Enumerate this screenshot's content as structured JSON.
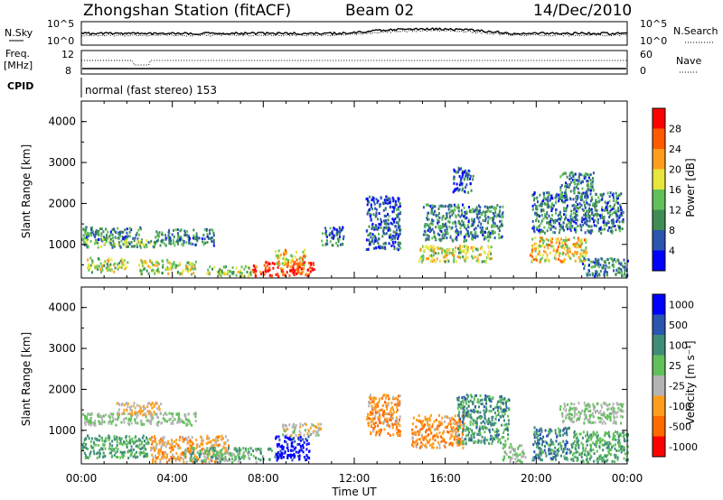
{
  "header": {
    "station": "Zhongshan Station (fitACF)",
    "beam": "Beam 02",
    "date": "14/Dec/2010",
    "mode_line": "normal (fast stereo) 153"
  },
  "strips": {
    "nsky_label": "N.Sky",
    "nsearch_label": "N.Search",
    "nsky_ticks": [
      "10^5",
      "10^0"
    ],
    "nsearch_ticks": [
      "10^5",
      "10^0"
    ],
    "freq_label_1": "Freq.",
    "freq_label_2": "[MHz]",
    "freq_ticks": [
      "12",
      "8"
    ],
    "nave_label": "Nave",
    "nave_ticks": [
      "60",
      "0"
    ],
    "cpid_label": "CPID"
  },
  "colors": {
    "power_scale": [
      "#0000ff",
      "#2a55b0",
      "#3f8c55",
      "#60c05a",
      "#e6e63c",
      "#ff9e1e",
      "#ff5a00",
      "#ff0000"
    ],
    "velocity_scale": [
      "#0000ff",
      "#2a55b0",
      "#3f8c78",
      "#60c05a",
      "#b4b4b4",
      "#ff9e1e",
      "#ff6a00",
      "#ff0000"
    ]
  },
  "chart_data": [
    {
      "type": "heatmap",
      "panel": "power",
      "ylabel": "Slant Range [km]",
      "yticks": [
        "4000",
        "3000",
        "2000",
        "1000"
      ],
      "ylim": [
        180,
        4500
      ],
      "xticks": [
        "00:00",
        "04:00",
        "08:00",
        "12:00",
        "16:00",
        "20:00",
        "00:00"
      ],
      "xlim_hours": [
        0,
        24
      ],
      "colorbar_label": "Power [dB]",
      "colorbar_ticks": [
        "28",
        "24",
        "20",
        "16",
        "12",
        "8",
        "4"
      ],
      "colorbar_range": [
        0,
        30
      ],
      "blobs": [
        {
          "h0": 0.0,
          "h1": 2.6,
          "r0": 1150,
          "r1": 1450,
          "v": 8
        },
        {
          "h0": 0.0,
          "h1": 3.2,
          "r0": 950,
          "r1": 1200,
          "v": 12
        },
        {
          "h0": 0.2,
          "h1": 2.0,
          "r0": 350,
          "r1": 700,
          "v": 14
        },
        {
          "h0": 2.5,
          "h1": 5.0,
          "r0": 300,
          "r1": 650,
          "v": 16
        },
        {
          "h0": 3.2,
          "h1": 5.8,
          "r0": 1000,
          "r1": 1400,
          "v": 9
        },
        {
          "h0": 5.5,
          "h1": 7.5,
          "r0": 250,
          "r1": 500,
          "v": 14
        },
        {
          "h0": 7.5,
          "h1": 10.2,
          "r0": 250,
          "r1": 600,
          "v": 26
        },
        {
          "h0": 8.5,
          "h1": 9.8,
          "r0": 500,
          "r1": 900,
          "v": 18
        },
        {
          "h0": 10.5,
          "h1": 11.5,
          "r0": 1000,
          "r1": 1450,
          "v": 7
        },
        {
          "h0": 12.5,
          "h1": 14.0,
          "r0": 900,
          "r1": 2200,
          "v": 6
        },
        {
          "h0": 14.8,
          "h1": 18.0,
          "r0": 600,
          "r1": 1000,
          "v": 16
        },
        {
          "h0": 15.0,
          "h1": 18.5,
          "r0": 1100,
          "r1": 2000,
          "v": 9
        },
        {
          "h0": 16.3,
          "h1": 17.2,
          "r0": 2300,
          "r1": 2900,
          "v": 6
        },
        {
          "h0": 19.7,
          "h1": 22.2,
          "r0": 600,
          "r1": 1200,
          "v": 18
        },
        {
          "h0": 19.8,
          "h1": 23.8,
          "r0": 1300,
          "r1": 2300,
          "v": 8
        },
        {
          "h0": 21.0,
          "h1": 22.5,
          "r0": 2100,
          "r1": 2800,
          "v": 9
        },
        {
          "h0": 22.0,
          "h1": 24.0,
          "r0": 250,
          "r1": 700,
          "v": 8
        }
      ]
    },
    {
      "type": "heatmap",
      "panel": "velocity",
      "ylabel": "Slant Range [km]",
      "yticks": [
        "4000",
        "3000",
        "2000",
        "1000"
      ],
      "ylim": [
        180,
        4500
      ],
      "xticks": [
        "00:00",
        "04:00",
        "08:00",
        "12:00",
        "16:00",
        "20:00",
        "00:00"
      ],
      "xlim_hours": [
        0,
        24
      ],
      "xlabel": "Time UT",
      "colorbar_label": "Velocity [m s⁻¹]",
      "colorbar_ticks": [
        "1000",
        "500",
        "100",
        "25",
        "-25",
        "-100",
        "-500",
        "-1000"
      ],
      "colorbar_range": [
        -1200,
        1200
      ],
      "blobs": [
        {
          "h0": 0.0,
          "h1": 5.0,
          "r0": 1150,
          "r1": 1450,
          "v": 0
        },
        {
          "h0": 0.0,
          "h1": 3.0,
          "r0": 350,
          "r1": 900,
          "v": 300
        },
        {
          "h0": 1.5,
          "h1": 3.5,
          "r0": 1400,
          "r1": 1700,
          "v": -300
        },
        {
          "h0": 3.0,
          "h1": 6.5,
          "r0": 250,
          "r1": 900,
          "v": -400
        },
        {
          "h0": 4.5,
          "h1": 8.5,
          "r0": 250,
          "r1": 600,
          "v": 200
        },
        {
          "h0": 8.5,
          "h1": 10.0,
          "r0": 300,
          "r1": 900,
          "v": 1100
        },
        {
          "h0": 8.8,
          "h1": 10.5,
          "r0": 900,
          "r1": 1200,
          "v": -200
        },
        {
          "h0": 12.5,
          "h1": 14.0,
          "r0": 900,
          "r1": 1900,
          "v": -500
        },
        {
          "h0": 14.5,
          "h1": 16.8,
          "r0": 600,
          "r1": 1400,
          "v": -500
        },
        {
          "h0": 16.5,
          "h1": 18.8,
          "r0": 700,
          "r1": 1900,
          "v": 400
        },
        {
          "h0": 18.5,
          "h1": 19.5,
          "r0": 250,
          "r1": 700,
          "v": 0
        },
        {
          "h0": 19.8,
          "h1": 21.5,
          "r0": 300,
          "r1": 1100,
          "v": 500
        },
        {
          "h0": 21.0,
          "h1": 23.8,
          "r0": 1200,
          "r1": 1700,
          "v": 0
        },
        {
          "h0": 21.5,
          "h1": 24.0,
          "r0": 250,
          "r1": 1000,
          "v": 300
        }
      ]
    }
  ]
}
